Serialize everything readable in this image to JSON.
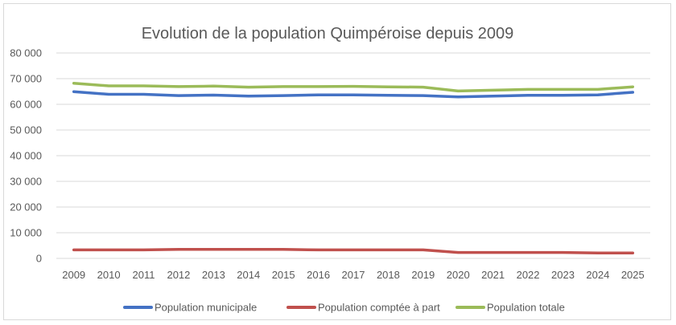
{
  "chart_data": {
    "type": "line",
    "title": "Evolution de la population Quimpéroise depuis 2009",
    "xlabel": "",
    "ylabel": "",
    "categories": [
      "2009",
      "2010",
      "2011",
      "2012",
      "2013",
      "2014",
      "2015",
      "2016",
      "2017",
      "2018",
      "2019",
      "2020",
      "2021",
      "2022",
      "2023",
      "2024",
      "2025"
    ],
    "ylim": [
      0,
      80000
    ],
    "yticks": [
      0,
      10000,
      20000,
      30000,
      40000,
      50000,
      60000,
      70000,
      80000
    ],
    "ytick_labels": [
      "0",
      "10 000",
      "20 000",
      "30 000",
      "40 000",
      "50 000",
      "60 000",
      "70 000",
      "80 000"
    ],
    "grid": true,
    "legend_position": "bottom",
    "series": [
      {
        "name": "Population municipale",
        "color": "#4472c4",
        "values": [
          64900,
          63900,
          63900,
          63400,
          63600,
          63200,
          63400,
          63700,
          63700,
          63500,
          63400,
          62900,
          63200,
          63500,
          63500,
          63700,
          64700
        ]
      },
      {
        "name": "Population comptée à part",
        "color": "#c0504d",
        "values": [
          3300,
          3300,
          3300,
          3500,
          3500,
          3500,
          3500,
          3300,
          3300,
          3300,
          3300,
          2300,
          2300,
          2300,
          2300,
          2100,
          2100
        ]
      },
      {
        "name": "Population totale",
        "color": "#9bbb59",
        "values": [
          68200,
          67200,
          67200,
          66900,
          67100,
          66700,
          66900,
          66900,
          67000,
          66800,
          66700,
          65200,
          65500,
          65800,
          65800,
          65800,
          66800
        ]
      }
    ]
  }
}
